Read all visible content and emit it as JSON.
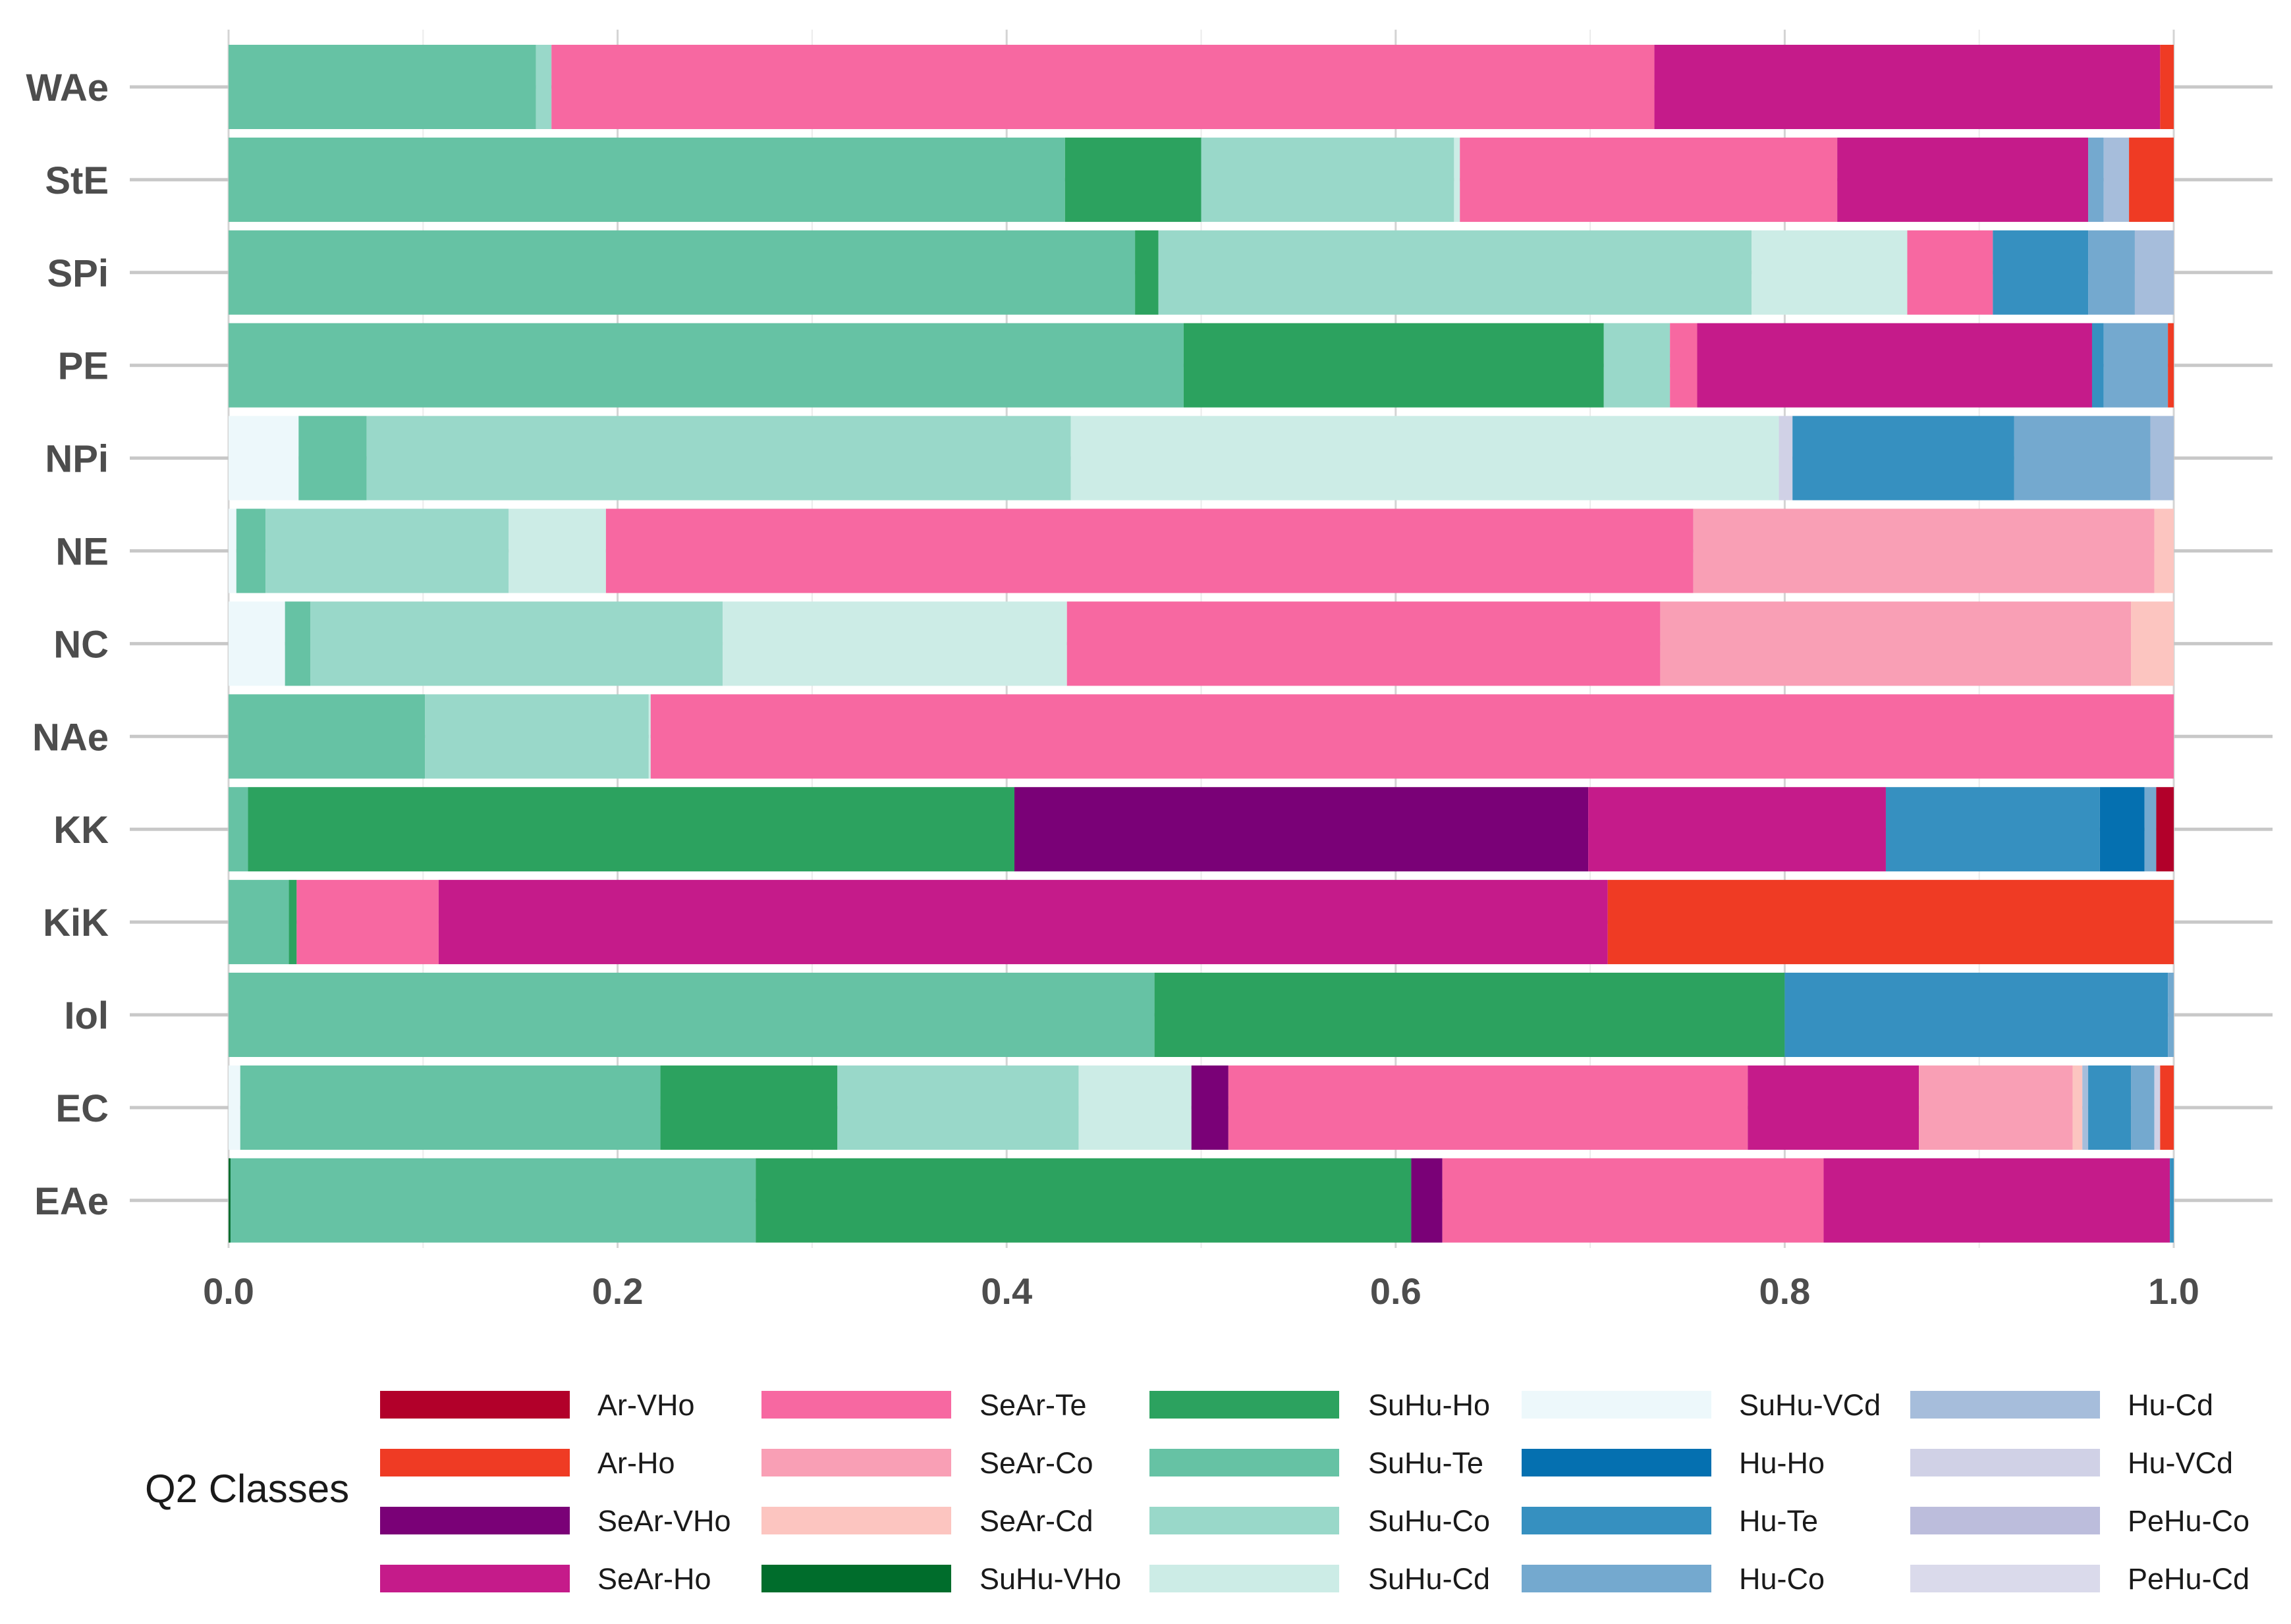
{
  "chart_data": {
    "type": "bar",
    "orientation": "horizontal",
    "stacked": true,
    "title": "",
    "xlabel": "",
    "ylabel": "",
    "xlim": [
      0,
      1
    ],
    "x_ticks": [
      "0.0",
      "0.2",
      "0.4",
      "0.6",
      "0.8",
      "1.0"
    ],
    "x_tick_values": [
      0,
      0.2,
      0.4,
      0.6,
      0.8,
      1.0
    ],
    "categories": [
      "WAe",
      "StE",
      "SPi",
      "PE",
      "NPi",
      "NE",
      "NC",
      "NAe",
      "KK",
      "KiK",
      "Iol",
      "EC",
      "EAe"
    ],
    "grid": true,
    "legend_title": "Q2 Classes",
    "legend_position": "bottom",
    "classes": [
      {
        "name": "Ar-VHo",
        "color": "#b2002a"
      },
      {
        "name": "Ar-Ho",
        "color": "#ef3b24"
      },
      {
        "name": "SeAr-VHo",
        "color": "#7a0177"
      },
      {
        "name": "SeAr-Ho",
        "color": "#c51b8a"
      },
      {
        "name": "SeAr-Te",
        "color": "#f768a1"
      },
      {
        "name": "SeAr-Co",
        "color": "#f99fb5"
      },
      {
        "name": "SeAr-Cd",
        "color": "#fcc5c0"
      },
      {
        "name": "SuHu-VHo",
        "color": "#006d2c"
      },
      {
        "name": "SuHu-Ho",
        "color": "#2ca25f"
      },
      {
        "name": "SuHu-Te",
        "color": "#66c2a4"
      },
      {
        "name": "SuHu-Co",
        "color": "#99d8c9"
      },
      {
        "name": "SuHu-Cd",
        "color": "#ccece6"
      },
      {
        "name": "SuHu-VCd",
        "color": "#edf8fb"
      },
      {
        "name": "Hu-Ho",
        "color": "#0570b0"
      },
      {
        "name": "Hu-Te",
        "color": "#3690c0"
      },
      {
        "name": "Hu-Co",
        "color": "#74a9cf"
      },
      {
        "name": "Hu-Cd",
        "color": "#a6bddb"
      },
      {
        "name": "Hu-VCd",
        "color": "#d0d1e6"
      },
      {
        "name": "PeHu-Co",
        "color": "#bcbddc"
      },
      {
        "name": "PeHu-Cd",
        "color": "#dadaeb"
      }
    ],
    "stack_order": [
      "SuHu-VCd",
      "SuHu-VHo",
      "SuHu-Te",
      "SuHu-Ho",
      "SuHu-Co",
      "SuHu-Cd",
      "SeAr-VHo",
      "SeAr-Te",
      "SeAr-Ho",
      "SeAr-Co",
      "SeAr-Cd",
      "PeHu-Cd",
      "PeHu-Co",
      "Hu-Te",
      "Hu-Ho",
      "Hu-Co",
      "Hu-Cd",
      "Hu-VCd",
      "Ar-VHo",
      "Ar-Ho"
    ],
    "series": [
      {
        "category": "WAe",
        "segments": [
          {
            "class": "SuHu-Te",
            "value": 0.158
          },
          {
            "class": "SuHu-Co",
            "value": 0.008
          },
          {
            "class": "SeAr-Te",
            "value": 0.567
          },
          {
            "class": "SeAr-Ho",
            "value": 0.26
          },
          {
            "class": "Ar-Ho",
            "value": 0.007
          }
        ]
      },
      {
        "category": "StE",
        "segments": [
          {
            "class": "SuHu-Te",
            "value": 0.43
          },
          {
            "class": "SuHu-Ho",
            "value": 0.07
          },
          {
            "class": "SuHu-Co",
            "value": 0.13
          },
          {
            "class": "SuHu-Cd",
            "value": 0.003
          },
          {
            "class": "SeAr-Te",
            "value": 0.194
          },
          {
            "class": "SeAr-Ho",
            "value": 0.129
          },
          {
            "class": "Hu-Co",
            "value": 0.008
          },
          {
            "class": "Hu-Cd",
            "value": 0.013
          },
          {
            "class": "Ar-Ho",
            "value": 0.023
          }
        ]
      },
      {
        "category": "SPi",
        "segments": [
          {
            "class": "SuHu-Te",
            "value": 0.466
          },
          {
            "class": "SuHu-Ho",
            "value": 0.012
          },
          {
            "class": "SuHu-Co",
            "value": 0.305
          },
          {
            "class": "SuHu-Cd",
            "value": 0.08
          },
          {
            "class": "SeAr-Te",
            "value": 0.044
          },
          {
            "class": "Hu-Te",
            "value": 0.049
          },
          {
            "class": "Hu-Co",
            "value": 0.024
          },
          {
            "class": "Hu-Cd",
            "value": 0.02
          }
        ]
      },
      {
        "category": "PE",
        "segments": [
          {
            "class": "SuHu-Te",
            "value": 0.491
          },
          {
            "class": "SuHu-Ho",
            "value": 0.216
          },
          {
            "class": "SuHu-Co",
            "value": 0.034
          },
          {
            "class": "SeAr-Te",
            "value": 0.014
          },
          {
            "class": "SeAr-Ho",
            "value": 0.203
          },
          {
            "class": "Hu-Te",
            "value": 0.006
          },
          {
            "class": "Hu-Co",
            "value": 0.033
          },
          {
            "class": "Ar-Ho",
            "value": 0.003
          }
        ]
      },
      {
        "category": "NPi",
        "segments": [
          {
            "class": "SuHu-VCd",
            "value": 0.036
          },
          {
            "class": "SuHu-Te",
            "value": 0.035
          },
          {
            "class": "SuHu-Co",
            "value": 0.362
          },
          {
            "class": "SuHu-Cd",
            "value": 0.364
          },
          {
            "class": "Hu-VCd",
            "value": 0.007
          },
          {
            "class": "Hu-Te",
            "value": 0.114
          },
          {
            "class": "Hu-Co",
            "value": 0.07
          },
          {
            "class": "Hu-Cd",
            "value": 0.012
          }
        ]
      },
      {
        "category": "NE",
        "segments": [
          {
            "class": "SuHu-VCd",
            "value": 0.004
          },
          {
            "class": "SuHu-Te",
            "value": 0.015
          },
          {
            "class": "SuHu-Co",
            "value": 0.125
          },
          {
            "class": "SuHu-Cd",
            "value": 0.05
          },
          {
            "class": "SeAr-Te",
            "value": 0.559
          },
          {
            "class": "SeAr-Co",
            "value": 0.237
          },
          {
            "class": "SeAr-Cd",
            "value": 0.01
          }
        ]
      },
      {
        "category": "NC",
        "segments": [
          {
            "class": "SuHu-VCd",
            "value": 0.029
          },
          {
            "class": "SuHu-Te",
            "value": 0.013
          },
          {
            "class": "SuHu-Co",
            "value": 0.212
          },
          {
            "class": "SuHu-Cd",
            "value": 0.177
          },
          {
            "class": "SeAr-Te",
            "value": 0.305
          },
          {
            "class": "SeAr-Co",
            "value": 0.242
          },
          {
            "class": "SeAr-Cd",
            "value": 0.022
          }
        ]
      },
      {
        "category": "NAe",
        "segments": [
          {
            "class": "SuHu-Te",
            "value": 0.101
          },
          {
            "class": "SuHu-Co",
            "value": 0.115
          },
          {
            "class": "SuHu-Cd",
            "value": 0.001
          },
          {
            "class": "SeAr-Te",
            "value": 0.783
          }
        ]
      },
      {
        "category": "KK",
        "segments": [
          {
            "class": "SuHu-Te",
            "value": 0.01
          },
          {
            "class": "SuHu-Ho",
            "value": 0.394
          },
          {
            "class": "SeAr-VHo",
            "value": 0.295
          },
          {
            "class": "SeAr-Ho",
            "value": 0.153
          },
          {
            "class": "Hu-Te",
            "value": 0.11
          },
          {
            "class": "Hu-Ho",
            "value": 0.023
          },
          {
            "class": "Hu-Co",
            "value": 0.006
          },
          {
            "class": "Ar-VHo",
            "value": 0.009
          }
        ]
      },
      {
        "category": "KiK",
        "segments": [
          {
            "class": "SuHu-Te",
            "value": 0.031
          },
          {
            "class": "SuHu-Ho",
            "value": 0.004
          },
          {
            "class": "SeAr-Te",
            "value": 0.073
          },
          {
            "class": "SeAr-Ho",
            "value": 0.601
          },
          {
            "class": "Ar-Ho",
            "value": 0.291
          }
        ]
      },
      {
        "category": "Iol",
        "segments": [
          {
            "class": "SuHu-Te",
            "value": 0.476
          },
          {
            "class": "SuHu-Ho",
            "value": 0.324
          },
          {
            "class": "Hu-Te",
            "value": 0.197
          },
          {
            "class": "Hu-Co",
            "value": 0.003
          }
        ]
      },
      {
        "category": "EC",
        "segments": [
          {
            "class": "SuHu-VCd",
            "value": 0.006
          },
          {
            "class": "SuHu-Te",
            "value": 0.216
          },
          {
            "class": "SuHu-Ho",
            "value": 0.091
          },
          {
            "class": "SuHu-Co",
            "value": 0.124
          },
          {
            "class": "SuHu-Cd",
            "value": 0.058
          },
          {
            "class": "SeAr-VHo",
            "value": 0.019
          },
          {
            "class": "SeAr-Te",
            "value": 0.267
          },
          {
            "class": "SeAr-Ho",
            "value": 0.088
          },
          {
            "class": "SeAr-Co",
            "value": 0.079
          },
          {
            "class": "SeAr-Cd",
            "value": 0.005
          },
          {
            "class": "Hu-Cd",
            "value": 0.003
          },
          {
            "class": "Hu-Te",
            "value": 0.022
          },
          {
            "class": "Hu-Co",
            "value": 0.012
          },
          {
            "class": "Hu-VCd",
            "value": 0.003
          },
          {
            "class": "Ar-Ho",
            "value": 0.007
          }
        ]
      },
      {
        "category": "EAe",
        "segments": [
          {
            "class": "SuHu-VHo",
            "value": 0.001
          },
          {
            "class": "SuHu-Te",
            "value": 0.27
          },
          {
            "class": "SuHu-Ho",
            "value": 0.337
          },
          {
            "class": "SeAr-VHo",
            "value": 0.016
          },
          {
            "class": "SeAr-Te",
            "value": 0.196
          },
          {
            "class": "SeAr-Ho",
            "value": 0.178
          },
          {
            "class": "Hu-Te",
            "value": 0.002
          }
        ]
      }
    ]
  }
}
